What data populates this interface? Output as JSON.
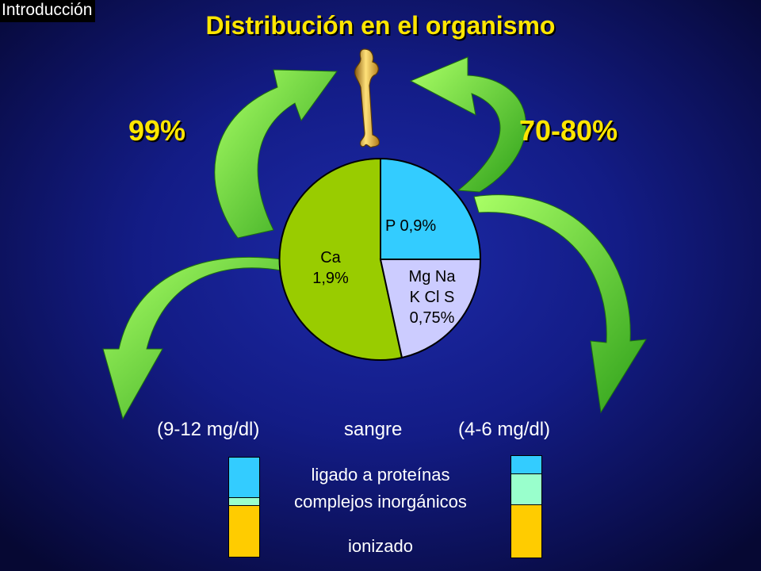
{
  "header": {
    "section": "Introducción",
    "title": "Distribución en el organismo"
  },
  "percentages": {
    "left": "99%",
    "right": "70-80%"
  },
  "pie": {
    "ca_label": "Ca",
    "ca_value": "1,9%",
    "p_label": "P 0,9%",
    "others_line1": "Mg Na",
    "others_line2": "K Cl S",
    "others_value": "0,75%"
  },
  "blood": {
    "left_range": "(9-12 mg/dl)",
    "center": "sangre",
    "right_range": "(4-6 mg/dl)"
  },
  "legend": {
    "protein_bound": "ligado a proteínas",
    "inorganic_complexes": "complejos inorgánicos",
    "ionized": "ionizado"
  },
  "colors": {
    "protein_bound": "#33ccff",
    "inorganic_complexes": "#99ffcc",
    "ionized": "#ffcc00",
    "ca_slice": "#99cc00",
    "p_slice": "#33ccff",
    "others_slice": "#ccccff",
    "arrow": "#66dd33"
  }
}
